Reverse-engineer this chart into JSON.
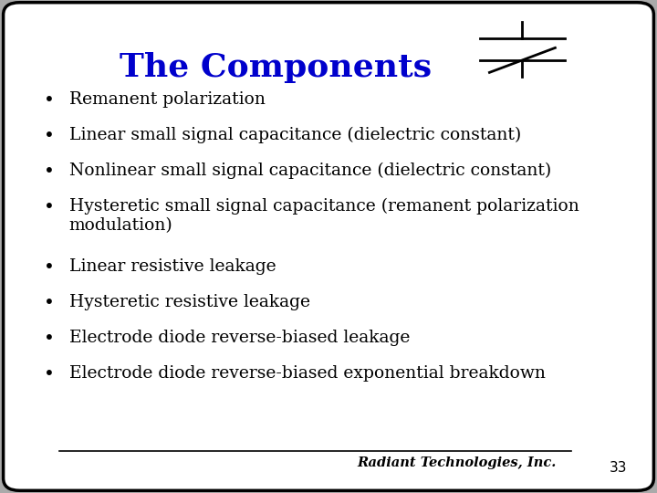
{
  "title": "The Components",
  "title_color": "#0000CC",
  "title_fontsize": 26,
  "bullet_items": [
    "Remanent polarization",
    "Linear small signal capacitance (dielectric constant)",
    "Nonlinear small signal capacitance (dielectric constant)",
    "Hysteretic small signal capacitance (remanent polarization\nmodulation)",
    "Linear resistive leakage",
    "Hysteretic resistive leakage",
    "Electrode diode reverse-biased leakage",
    "Electrode diode reverse-biased exponential breakdown"
  ],
  "bullet_fontsize": 13.5,
  "bullet_color": "#000000",
  "bullet_char": "•",
  "bg_color": "#FFFFFF",
  "border_color": "#000000",
  "footer_text": "Radiant Technologies, Inc.",
  "footer_fontsize": 10.5,
  "slide_number": "33",
  "slide_number_fontsize": 11,
  "outer_bg": "#AAAAAA"
}
